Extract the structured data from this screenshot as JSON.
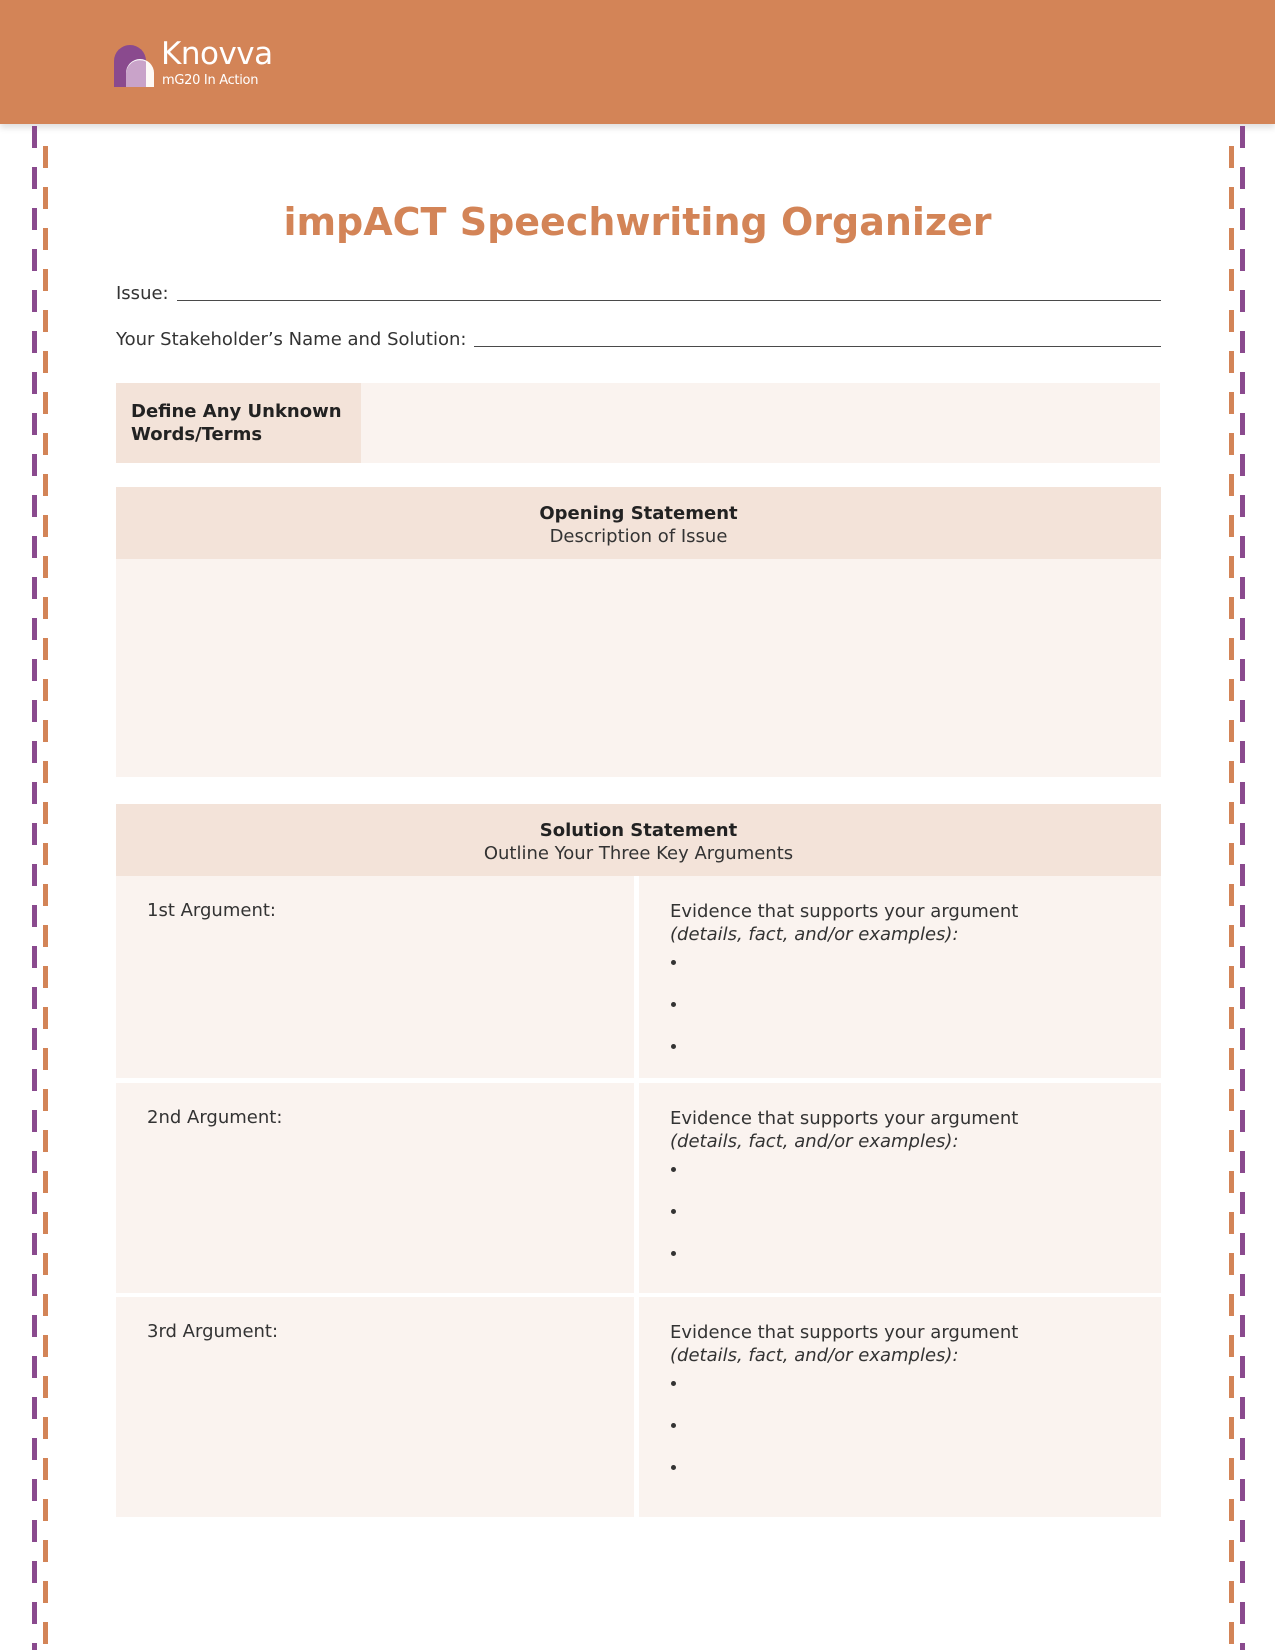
{
  "header": {
    "logo_name": "Knovva",
    "logo_tagline": "mG20 In Action",
    "colors": {
      "brand_orange": "#d38457",
      "brand_purple": "#8a4a8e",
      "section_fill": "#f3e3d9",
      "box_fill": "#faf3ef"
    }
  },
  "title": "impACT Speechwriting Organizer",
  "fields": {
    "issue_label": "Issue:",
    "stakeholder_label": "Your Stakeholder’s Name and Solution:"
  },
  "define": {
    "label": "Define Any Unknown Words/Terms"
  },
  "opening": {
    "title": "Opening Statement",
    "subtitle": "Description of Issue"
  },
  "solution": {
    "title": "Solution Statement",
    "subtitle": "Outline Your Three Key Arguments",
    "arguments": [
      {
        "label": "1st Argument:",
        "evidence_title": "Evidence that supports your argument",
        "evidence_note": "(details, fact, and/or examples):"
      },
      {
        "label": "2nd Argument:",
        "evidence_title": "Evidence that supports your argument",
        "evidence_note": "(details, fact, and/or examples):"
      },
      {
        "label": "3rd Argument:",
        "evidence_title": "Evidence that supports your argument",
        "evidence_note": "(details, fact, and/or examples):"
      }
    ]
  }
}
